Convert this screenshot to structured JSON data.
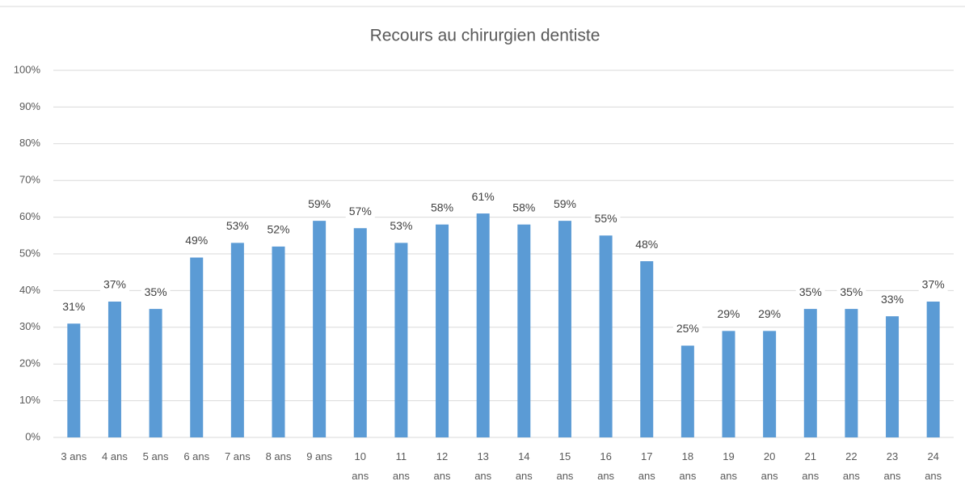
{
  "chart_data": {
    "type": "bar",
    "title": "Recours au chirurgien dentiste",
    "categories": [
      "3 ans",
      "4 ans",
      "5 ans",
      "6 ans",
      "7 ans",
      "8 ans",
      "9 ans",
      "10 ans",
      "11 ans",
      "12 ans",
      "13 ans",
      "14 ans",
      "15 ans",
      "16 ans",
      "17 ans",
      "18 ans",
      "19 ans",
      "20 ans",
      "21 ans",
      "22 ans",
      "23 ans",
      "24 ans"
    ],
    "values": [
      31,
      37,
      35,
      49,
      53,
      52,
      59,
      57,
      53,
      58,
      61,
      58,
      59,
      55,
      48,
      25,
      29,
      29,
      35,
      35,
      33,
      37
    ],
    "value_labels": [
      "31%",
      "37%",
      "35%",
      "49%",
      "53%",
      "52%",
      "59%",
      "57%",
      "53%",
      "58%",
      "61%",
      "58%",
      "59%",
      "55%",
      "48%",
      "25%",
      "29%",
      "29%",
      "35%",
      "35%",
      "33%",
      "37%"
    ],
    "color": "#5b9bd5",
    "ylim": [
      0,
      100
    ],
    "yticks": [
      {
        "value": 0,
        "label": "0%"
      },
      {
        "value": 10,
        "label": "10%"
      },
      {
        "value": 20,
        "label": "20%"
      },
      {
        "value": 30,
        "label": "30%"
      },
      {
        "value": 40,
        "label": "40%"
      },
      {
        "value": 50,
        "label": "50%"
      },
      {
        "value": 60,
        "label": "60%"
      },
      {
        "value": 70,
        "label": "70%"
      },
      {
        "value": 80,
        "label": "80%"
      },
      {
        "value": 90,
        "label": "90%"
      },
      {
        "value": 100,
        "label": "100%"
      }
    ],
    "grid": true
  }
}
